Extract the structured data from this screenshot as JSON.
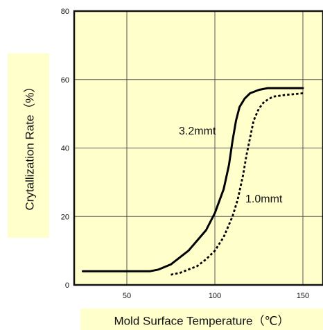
{
  "chart_data": {
    "type": "line",
    "title": "",
    "xlabel": "Mold Surface Temperature（℃）",
    "ylabel": "Crytallization Rate（%）",
    "xlim": [
      20,
      155
    ],
    "ylim": [
      0,
      80
    ],
    "x_ticks": [
      50,
      100,
      150
    ],
    "y_ticks": [
      0,
      20,
      40,
      60,
      80
    ],
    "grid": true,
    "colors": {
      "plot_background": "#ffffcc",
      "label_background": "#ffffcc",
      "line": "#000000",
      "grid": "#555555"
    },
    "series": [
      {
        "name": "3.2mmt",
        "style": "solid",
        "x": [
          25,
          40,
          55,
          63,
          68,
          75,
          85,
          95,
          100,
          105,
          108,
          110,
          112,
          114,
          117,
          120,
          125,
          130,
          140,
          150
        ],
        "y": [
          4,
          4,
          4,
          4,
          4.5,
          6,
          10,
          16,
          21,
          28,
          35,
          42,
          48,
          52,
          54.5,
          56,
          57,
          57.5,
          57.5,
          57.5
        ]
      },
      {
        "name": "1.0mmt",
        "style": "dotted",
        "x": [
          75,
          80,
          85,
          90,
          95,
          100,
          105,
          110,
          113,
          116,
          118,
          120,
          122,
          125,
          128,
          133,
          140,
          150
        ],
        "y": [
          3,
          3.5,
          4.5,
          5.5,
          7.5,
          10,
          14,
          20,
          25,
          32,
          38,
          43,
          48,
          51.5,
          53.5,
          55,
          55.5,
          56
        ]
      }
    ],
    "annotations": [
      "3.2mmt",
      "1.0mmt"
    ]
  }
}
